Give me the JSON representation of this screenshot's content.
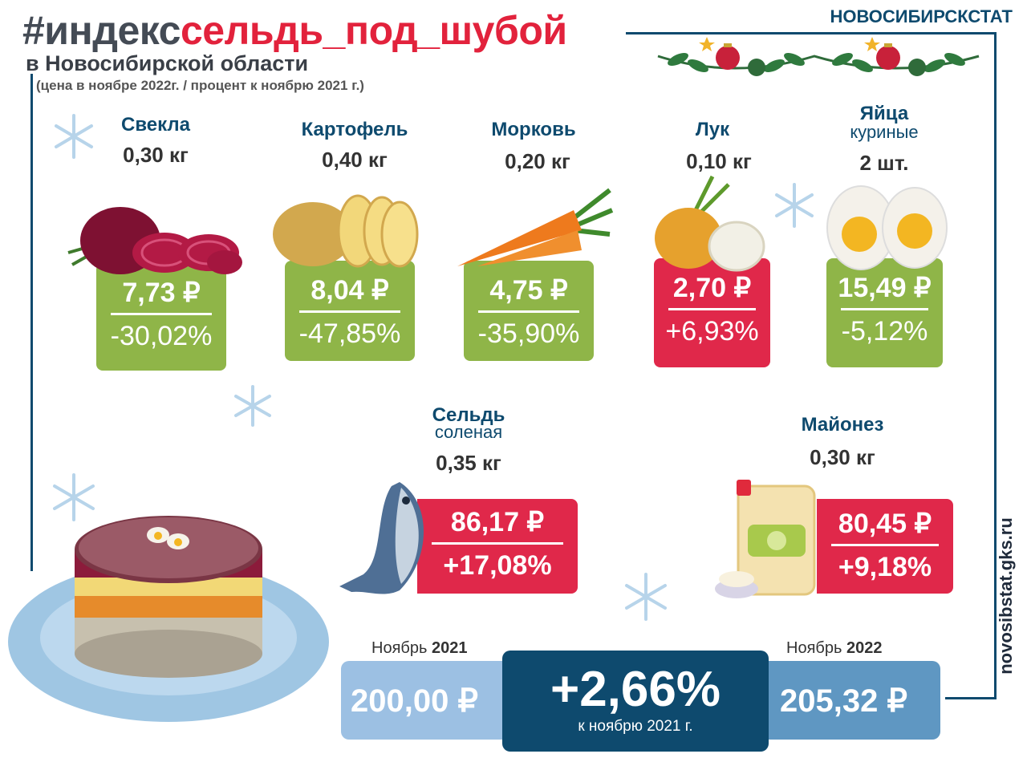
{
  "header": {
    "title_part1": "#индекс",
    "title_part2": "сельдь_под_шубой",
    "subtitle": "в Новосибирской области",
    "note": "(цена в ноябре 2022г. / процент к ноябрю 2021 г.)",
    "brand": "НОВОСИБИРСКСТАТ",
    "site": "novosibstat.gks.ru"
  },
  "ingredients": [
    {
      "name": "Свекла",
      "name2": "",
      "qty": "0,30 кг",
      "price": "7,73 ₽",
      "change": "-30,02%",
      "color": "#8fb548"
    },
    {
      "name": "Картофель",
      "name2": "",
      "qty": "0,40 кг",
      "price": "8,04 ₽",
      "change": "-47,85%",
      "color": "#8fb548"
    },
    {
      "name": "Морковь",
      "name2": "",
      "qty": "0,20 кг",
      "price": "4,75 ₽",
      "change": "-35,90%",
      "color": "#8fb548"
    },
    {
      "name": "Лук",
      "name2": "",
      "qty": "0,10 кг",
      "price": "2,70 ₽",
      "change": "+6,93%",
      "color": "#e0284a"
    },
    {
      "name": "Яйца",
      "name2": "куриные",
      "qty": "2 шт.",
      "price": "15,49 ₽",
      "change": "-5,12%",
      "color": "#8fb548"
    },
    {
      "name": "Сельдь",
      "name2": "соленая",
      "qty": "0,35 кг",
      "price": "86,17 ₽",
      "change": "+17,08%",
      "color": "#e0284a"
    },
    {
      "name": "Майонез",
      "name2": "",
      "qty": "0,30 кг",
      "price": "80,45 ₽",
      "change": "+9,18%",
      "color": "#e0284a"
    }
  ],
  "totals": {
    "label_2021_a": "Ноябрь ",
    "label_2021_b": "2021",
    "value_2021": "200,00 ₽",
    "change": "+2,66%",
    "change_note": "к ноябрю 2021 г.",
    "label_2022_a": "Ноябрь ",
    "label_2022_b": "2022",
    "value_2022": "205,32 ₽"
  },
  "colors": {
    "green": "#8fb548",
    "red": "#e0284a",
    "navy": "#0e4a6e",
    "light_blue": "#9cc0e3",
    "mid_blue": "#5f97c2"
  }
}
